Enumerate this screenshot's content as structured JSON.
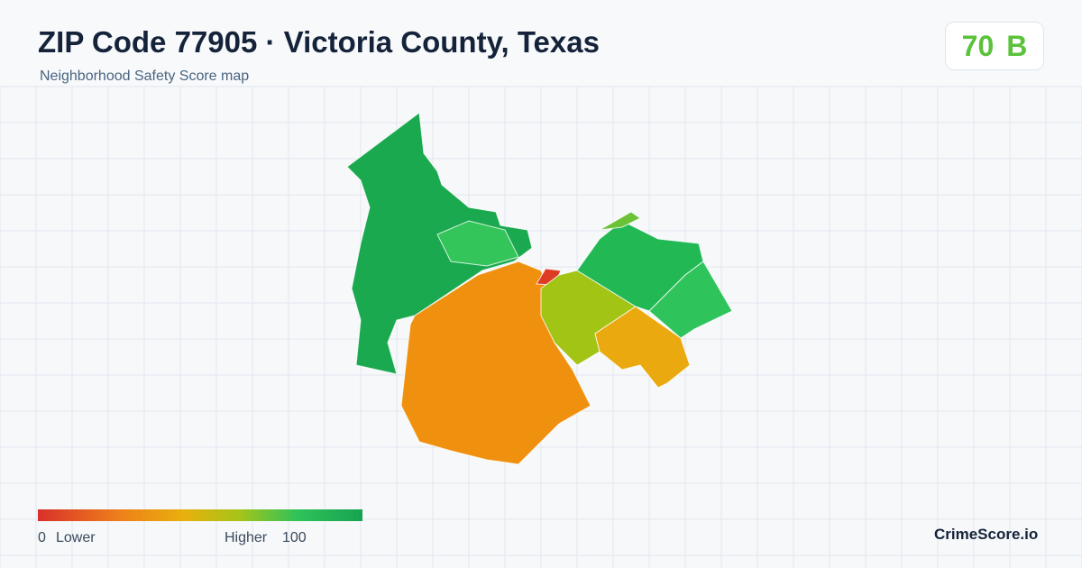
{
  "header": {
    "title": "ZIP Code 77905 · Victoria County, Texas",
    "subtitle": "Neighborhood Safety Score map"
  },
  "score": {
    "value": 70,
    "grade": "B"
  },
  "legend": {
    "min": 0,
    "min_label": "Lower",
    "max_label": "Higher",
    "max": 100
  },
  "brand": "CrimeScore.io"
}
